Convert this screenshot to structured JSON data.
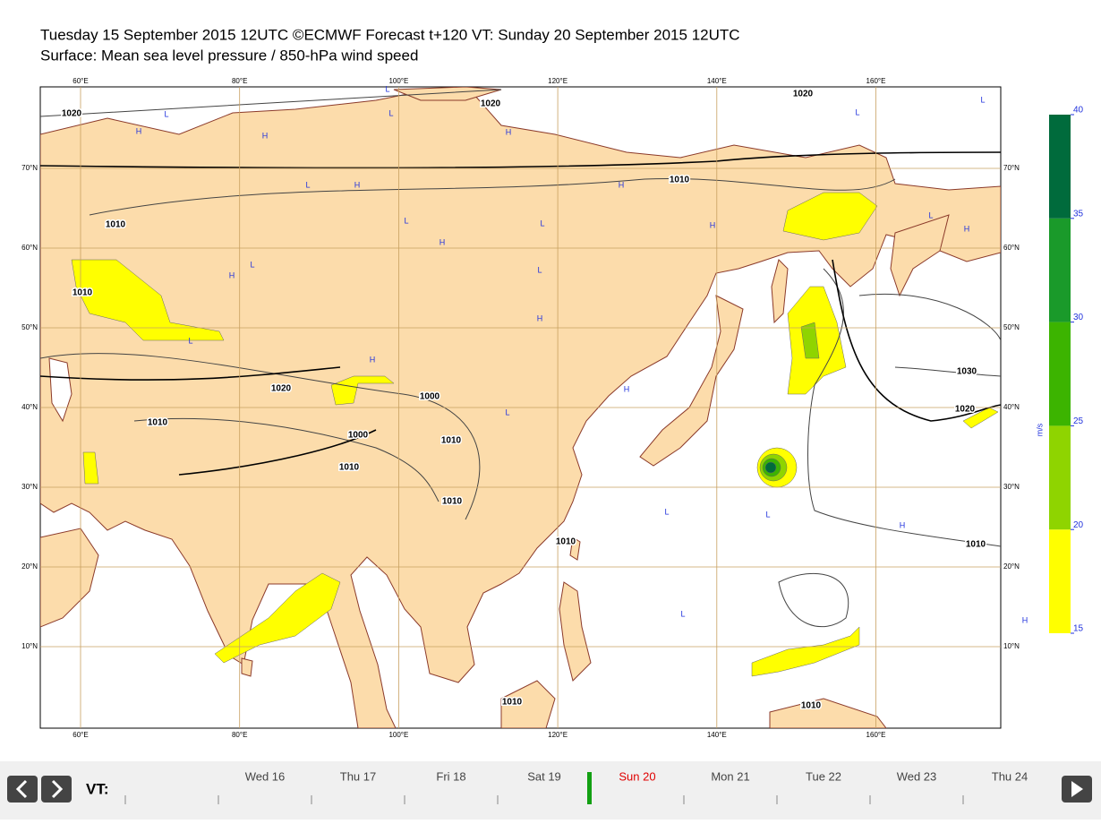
{
  "header": {
    "line1": "Tuesday 15 September 2015 12UTC ©ECMWF Forecast t+120 VT: Sunday 20 September 2015 12UTC",
    "line2": "Surface: Mean sea level pressure / 850-hPa wind speed"
  },
  "map": {
    "lon_ticks": [
      {
        "value": 60,
        "label": "60°E"
      },
      {
        "value": 80,
        "label": "80°E"
      },
      {
        "value": 100,
        "label": "100°E"
      },
      {
        "value": 120,
        "label": "120°E"
      },
      {
        "value": 140,
        "label": "140°E"
      },
      {
        "value": 160,
        "label": "160°E"
      }
    ],
    "lat_ticks": [
      {
        "value": 70,
        "label": "70°N"
      },
      {
        "value": 60,
        "label": "60°N"
      },
      {
        "value": 50,
        "label": "50°N"
      },
      {
        "value": 40,
        "label": "40°N"
      },
      {
        "value": 30,
        "label": "30°N"
      },
      {
        "value": 20,
        "label": "20°N"
      },
      {
        "value": 10,
        "label": "10°N"
      }
    ],
    "isobar_labels": [
      "1020",
      "1020",
      "1020",
      "1010",
      "1010",
      "1010",
      "1020",
      "1000",
      "1000",
      "1010",
      "1010",
      "1010",
      "1010",
      "1010",
      "1030",
      "1020",
      "1010",
      "1010",
      "1010"
    ],
    "pressure_centres": [
      "H",
      "L",
      "H",
      "L",
      "H",
      "L",
      "L",
      "L",
      "L",
      "H",
      "H",
      "L",
      "L",
      "H",
      "H",
      "L",
      "H",
      "L",
      "H",
      "L",
      "H",
      "L",
      "H",
      "H",
      "L",
      "L",
      "H",
      "L",
      "L",
      "H"
    ]
  },
  "colorbar": {
    "unit": "m/s",
    "levels": [
      15,
      20,
      25,
      30,
      35,
      40
    ],
    "colors": [
      "#ffff00",
      "#8fd400",
      "#3cb400",
      "#1a9a2a",
      "#006b3c"
    ]
  },
  "timeline": {
    "label": "VT:",
    "days": [
      "Wed 16",
      "Thu 17",
      "Fri 18",
      "Sat 19",
      "Sun 20",
      "Mon 21",
      "Tue 22",
      "Wed 23",
      "Thu 24"
    ],
    "selected": 4
  }
}
